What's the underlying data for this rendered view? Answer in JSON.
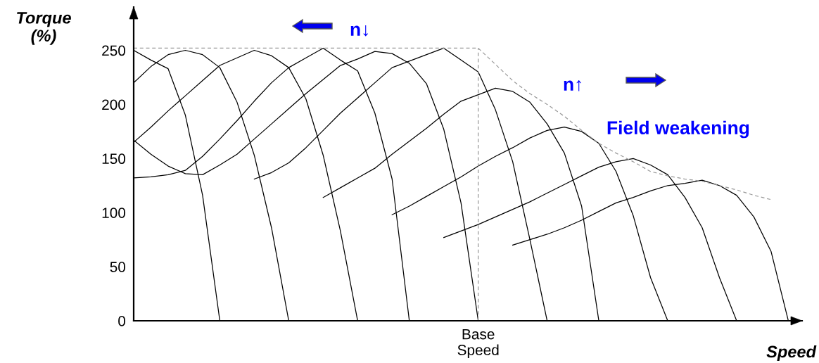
{
  "chart_data": {
    "type": "line",
    "xlabel": "Speed",
    "ylabel": "Torque\n(%)",
    "categories": [
      null,
      null,
      null,
      null,
      null,
      null,
      null,
      null,
      null,
      null,
      null,
      null,
      null,
      null,
      null,
      null,
      null,
      null,
      null,
      null,
      "Base\nSpeed",
      null,
      null,
      null,
      null,
      null,
      null,
      null,
      null,
      null,
      null,
      null,
      null,
      null,
      null,
      null,
      null,
      null,
      null
    ],
    "ylim": [
      0,
      290
    ],
    "yticks": [
      0,
      50,
      100,
      150,
      200,
      250
    ],
    "grid": false,
    "legend": false,
    "marker": "none",
    "ref_lines": [
      {
        "axis": "x",
        "value": "Base\nSpeed",
        "color": "#999999",
        "line_style": "dashed"
      }
    ],
    "annotations": [
      "n↓",
      "n↑",
      "Field weakening"
    ],
    "series": [
      {
        "color": "#000000",
        "values": [
          250,
          241,
          233,
          190,
          116,
          0,
          null,
          null,
          null,
          null,
          null,
          null,
          null,
          null,
          null,
          null,
          null,
          null,
          null,
          null,
          null,
          null,
          null,
          null,
          null,
          null,
          null,
          null,
          null,
          null,
          null,
          null,
          null,
          null,
          null,
          null,
          null,
          null,
          null
        ]
      },
      {
        "color": "#000000",
        "values": [
          220,
          235,
          246,
          250,
          246,
          234,
          202,
          153,
          86,
          0,
          null,
          null,
          null,
          null,
          null,
          null,
          null,
          null,
          null,
          null,
          null,
          null,
          null,
          null,
          null,
          null,
          null,
          null,
          null,
          null,
          null,
          null,
          null,
          null,
          null,
          null,
          null,
          null,
          null
        ]
      },
      {
        "color": "#000000",
        "values": [
          165,
          179,
          194,
          208,
          222,
          236,
          243,
          250,
          245,
          234,
          205,
          153,
          83,
          0,
          null,
          null,
          null,
          null,
          null,
          null,
          null,
          null,
          null,
          null,
          null,
          null,
          null,
          null,
          null,
          null,
          null,
          null,
          null,
          null,
          null,
          null,
          null,
          null,
          null
        ]
      },
      {
        "color": "#000000",
        "values": [
          132,
          133,
          135,
          139,
          152,
          168,
          185,
          203,
          220,
          234,
          243,
          252,
          241,
          231,
          192,
          131,
          0,
          null,
          null,
          null,
          null,
          null,
          null,
          null,
          null,
          null,
          null,
          null,
          null,
          null,
          null,
          null,
          null,
          null,
          null,
          null,
          null,
          null,
          null
        ]
      },
      {
        "color": "#000000",
        "values": [
          167,
          154,
          143,
          136,
          135,
          144,
          154,
          168,
          182,
          196,
          210,
          223,
          236,
          242,
          249,
          247,
          238,
          219,
          177,
          109,
          0,
          null,
          null,
          null,
          null,
          null,
          null,
          null,
          null,
          null,
          null,
          null,
          null,
          null,
          null,
          null,
          null,
          null,
          null
        ]
      },
      {
        "color": "#000000",
        "values": [
          null,
          null,
          null,
          null,
          null,
          null,
          null,
          131,
          137,
          146,
          160,
          176,
          192,
          206,
          220,
          234,
          240,
          246,
          252,
          241,
          230,
          195,
          147,
          75,
          0,
          null,
          null,
          null,
          null,
          null,
          null,
          null,
          null,
          null,
          null,
          null,
          null,
          null,
          null
        ]
      },
      {
        "color": "#000000",
        "values": [
          null,
          null,
          null,
          null,
          null,
          null,
          null,
          null,
          null,
          null,
          null,
          114,
          123,
          132,
          141,
          154,
          166,
          178,
          191,
          203,
          209,
          215,
          212,
          202,
          182,
          155,
          106,
          0,
          null,
          null,
          null,
          null,
          null,
          null,
          null,
          null,
          null,
          null,
          null
        ]
      },
      {
        "color": "#000000",
        "values": [
          null,
          null,
          null,
          null,
          null,
          null,
          null,
          null,
          null,
          null,
          null,
          null,
          null,
          null,
          null,
          98,
          106,
          115,
          124,
          133,
          143,
          152,
          160,
          169,
          176,
          179,
          175,
          164,
          138,
          97,
          40,
          0,
          null,
          null,
          null,
          null,
          null,
          null,
          null
        ]
      },
      {
        "color": "#000000",
        "values": [
          null,
          null,
          null,
          null,
          null,
          null,
          null,
          null,
          null,
          null,
          null,
          null,
          null,
          null,
          null,
          null,
          null,
          null,
          77,
          83,
          89,
          96,
          103,
          110,
          118,
          126,
          134,
          142,
          147,
          150,
          144,
          135,
          114,
          86,
          40,
          0,
          null,
          null,
          null
        ]
      },
      {
        "color": "#000000",
        "values": [
          null,
          null,
          null,
          null,
          null,
          null,
          null,
          null,
          null,
          null,
          null,
          null,
          null,
          null,
          null,
          null,
          null,
          null,
          null,
          null,
          null,
          null,
          70,
          75,
          80,
          86,
          93,
          101,
          109,
          114,
          120,
          125,
          127,
          130,
          125,
          116,
          96,
          64,
          0
        ]
      },
      {
        "color": "#999999",
        "line_style": "dashed",
        "values": [
          252,
          252,
          252,
          252,
          252,
          252,
          252,
          252,
          252,
          252,
          252,
          252,
          252,
          252,
          252,
          252,
          252,
          252,
          252,
          252,
          252,
          237,
          222,
          210,
          200,
          189,
          176,
          164,
          155,
          147,
          138,
          134,
          131,
          129,
          125,
          121,
          116,
          112,
          null
        ]
      }
    ]
  }
}
